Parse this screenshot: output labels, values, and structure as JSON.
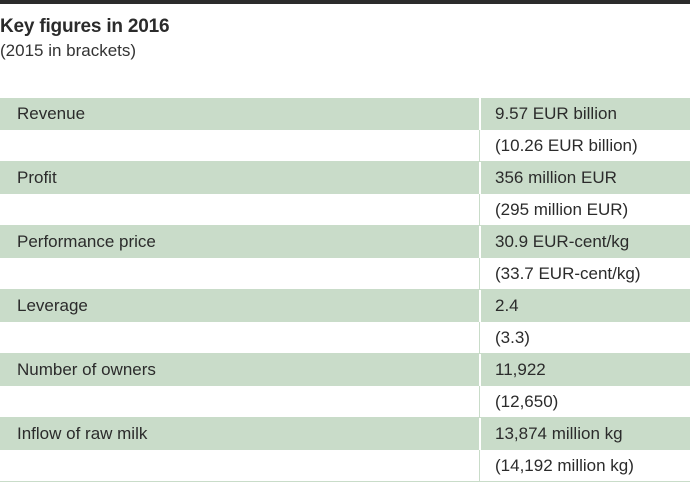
{
  "header": {
    "title": "Key figures in 2016",
    "subtitle": "(2015 in brackets)"
  },
  "figures": [
    {
      "label": "Revenue",
      "value_2016": "9.57 EUR billion",
      "value_2015": "(10.26 EUR billion)"
    },
    {
      "label": "Profit",
      "value_2016": "356 million EUR",
      "value_2015": "(295 million EUR)"
    },
    {
      "label": "Performance price",
      "value_2016": "30.9 EUR-cent/kg",
      "value_2015": "(33.7 EUR-cent/kg)"
    },
    {
      "label": "Leverage",
      "value_2016": "2.4",
      "value_2015": "(3.3)"
    },
    {
      "label": "Number of owners",
      "value_2016": "11,922",
      "value_2015": "(12,650)"
    },
    {
      "label": "Inflow of raw milk",
      "value_2016": "13,874 million kg",
      "value_2015": "(14,192 million kg)"
    }
  ],
  "colors": {
    "row_shade": "#c9dcc9",
    "text": "#2b2b2b",
    "rule": "#2b2b2b"
  }
}
